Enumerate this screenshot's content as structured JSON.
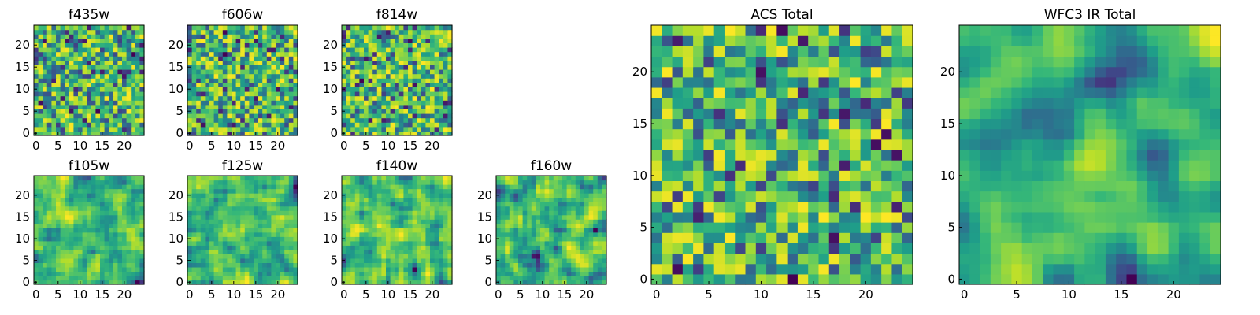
{
  "chart_data": [
    {
      "type": "heatmap",
      "title": "f435w",
      "xlim": [
        0,
        24
      ],
      "ylim": [
        0,
        24
      ],
      "xticks": [
        0,
        5,
        10,
        15,
        20
      ],
      "yticks": [
        0,
        5,
        10,
        15,
        20
      ],
      "colormap": "viridis",
      "seed": 11,
      "smooth": 0
    },
    {
      "type": "heatmap",
      "title": "f606w",
      "xlim": [
        0,
        24
      ],
      "ylim": [
        0,
        24
      ],
      "xticks": [
        0,
        5,
        10,
        15,
        20
      ],
      "yticks": [
        0,
        5,
        10,
        15,
        20
      ],
      "colormap": "viridis",
      "seed": 23,
      "smooth": 0
    },
    {
      "type": "heatmap",
      "title": "f814w",
      "xlim": [
        0,
        24
      ],
      "ylim": [
        0,
        24
      ],
      "xticks": [
        0,
        5,
        10,
        15,
        20
      ],
      "yticks": [
        0,
        5,
        10,
        15,
        20
      ],
      "colormap": "viridis",
      "seed": 37,
      "smooth": 0
    },
    {
      "type": "heatmap",
      "title": "f105w",
      "xlim": [
        0,
        24
      ],
      "ylim": [
        0,
        24
      ],
      "xticks": [
        0,
        5,
        10,
        15,
        20
      ],
      "yticks": [
        0,
        5,
        10,
        15,
        20
      ],
      "colormap": "viridis",
      "seed": 41,
      "smooth": 1
    },
    {
      "type": "heatmap",
      "title": "f125w",
      "xlim": [
        0,
        24
      ],
      "ylim": [
        0,
        24
      ],
      "xticks": [
        0,
        5,
        10,
        15,
        20
      ],
      "yticks": [
        0,
        5,
        10,
        15,
        20
      ],
      "colormap": "viridis",
      "seed": 53,
      "smooth": 1
    },
    {
      "type": "heatmap",
      "title": "f140w",
      "xlim": [
        0,
        24
      ],
      "ylim": [
        0,
        24
      ],
      "xticks": [
        0,
        5,
        10,
        15,
        20
      ],
      "yticks": [
        0,
        5,
        10,
        15,
        20
      ],
      "colormap": "viridis",
      "seed": 67,
      "smooth": 1
    },
    {
      "type": "heatmap",
      "title": "f160w",
      "xlim": [
        0,
        24
      ],
      "ylim": [
        0,
        24
      ],
      "xticks": [
        0,
        5,
        10,
        15,
        20
      ],
      "yticks": [
        0,
        5,
        10,
        15,
        20
      ],
      "colormap": "viridis",
      "seed": 79,
      "smooth": 1
    },
    {
      "type": "heatmap",
      "title": "ACS Total",
      "xlim": [
        0,
        24
      ],
      "ylim": [
        0,
        24
      ],
      "xticks": [
        0,
        5,
        10,
        15,
        20
      ],
      "yticks": [
        0,
        5,
        10,
        15,
        20
      ],
      "colormap": "viridis",
      "seed": 97,
      "smooth": 0
    },
    {
      "type": "heatmap",
      "title": "WFC3 IR Total",
      "xlim": [
        0,
        24
      ],
      "ylim": [
        0,
        24
      ],
      "xticks": [
        0,
        5,
        10,
        15,
        20
      ],
      "yticks": [
        0,
        5,
        10,
        15,
        20
      ],
      "colormap": "viridis",
      "seed": 101,
      "smooth": 2
    }
  ],
  "colors": {
    "frame": "#000000",
    "background": "#ffffff"
  }
}
